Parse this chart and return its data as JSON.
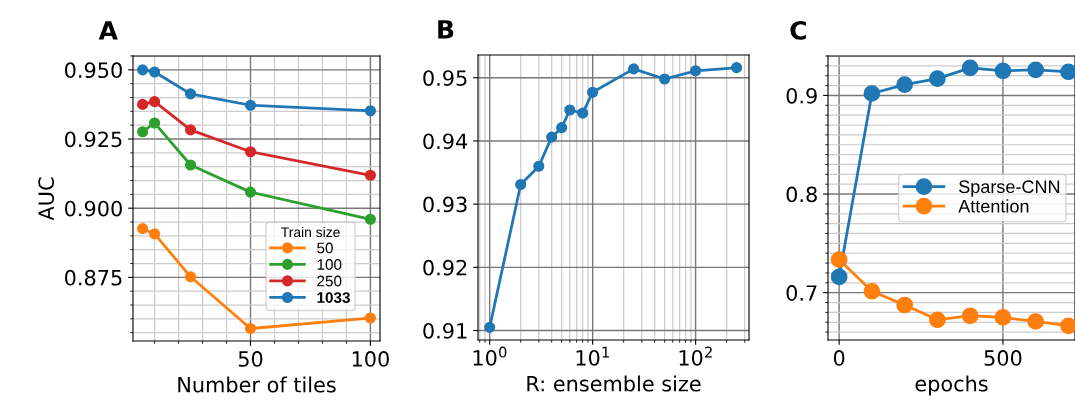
{
  "chart_data": [
    {
      "type": "line",
      "title": "A",
      "xlabel": "Number of tiles",
      "ylabel": "AUC",
      "legend_title": "Train size",
      "legend": "lower right",
      "grid": true,
      "marker": "circle",
      "x": [
        5,
        10,
        25,
        50,
        100
      ],
      "xlim": [
        1,
        104
      ],
      "xticks": [
        50,
        100
      ],
      "ylim": [
        0.852,
        0.955
      ],
      "yticks": [
        {
          "value": 0.875,
          "label": "0.875"
        },
        {
          "value": 0.9,
          "label": "0.900"
        },
        {
          "value": 0.925,
          "label": "0.925"
        },
        {
          "value": 0.95,
          "label": "0.950"
        }
      ],
      "series": [
        {
          "name": "50",
          "color": "#ff7f0e",
          "values": [
            0.8926,
            0.8907,
            0.8752,
            0.8565,
            0.8603
          ]
        },
        {
          "name": "100",
          "color": "#2ca02c",
          "values": [
            0.9276,
            0.9308,
            0.9156,
            0.9058,
            0.896
          ]
        },
        {
          "name": "250",
          "color": "#d62728",
          "values": [
            0.9375,
            0.9385,
            0.9283,
            0.9204,
            0.9119
          ]
        },
        {
          "name": "1033",
          "color": "#1f77b4",
          "values": [
            0.95,
            0.9492,
            0.9413,
            0.9372,
            0.9352
          ]
        }
      ]
    },
    {
      "type": "line",
      "title": "B",
      "xlabel": "R: ensemble size",
      "log": "x",
      "grid": true,
      "marker": "circle",
      "x": [
        1,
        2,
        3,
        4,
        5,
        6,
        8,
        10,
        25,
        50,
        100,
        250
      ],
      "xlim": [
        0.77,
        330
      ],
      "xticks": [
        {
          "value": 1,
          "label": "10$^{0}$"
        },
        {
          "value": 10,
          "label": "10$^{1}$"
        },
        {
          "value": 100,
          "label": "10$^{2}$"
        }
      ],
      "ylim": [
        0.9085,
        0.9536
      ],
      "yticks": [
        0.91,
        0.92,
        0.93,
        0.94,
        0.95
      ],
      "series": [
        {
          "color": "#1f77b4",
          "values": [
            0.9105,
            0.9331,
            0.936,
            0.9406,
            0.9421,
            0.9449,
            0.9444,
            0.9477,
            0.9514,
            0.9498,
            0.9511,
            0.9516
          ]
        }
      ]
    },
    {
      "type": "line",
      "title": "C",
      "xlabel": "epochs",
      "legend": "center right",
      "grid": true,
      "marker": "circle",
      "x": [
        0,
        100,
        200,
        300,
        400,
        500,
        600,
        700
      ],
      "xlim": [
        -34,
        720
      ],
      "xticks": [
        0,
        500
      ],
      "ylim": [
        0.652,
        0.94
      ],
      "yticks": [
        0.7,
        0.8,
        0.9
      ],
      "series": [
        {
          "name": "Sparse-CNN",
          "color": "#1f77b4",
          "values": [
            0.716,
            0.902,
            0.911,
            0.917,
            0.928,
            0.925,
            0.926,
            0.924
          ]
        },
        {
          "name": "Attention",
          "color": "#ff7f0e",
          "values": [
            0.7336,
            0.7014,
            0.6875,
            0.6725,
            0.6766,
            0.6749,
            0.6708,
            0.6664
          ]
        }
      ]
    }
  ]
}
